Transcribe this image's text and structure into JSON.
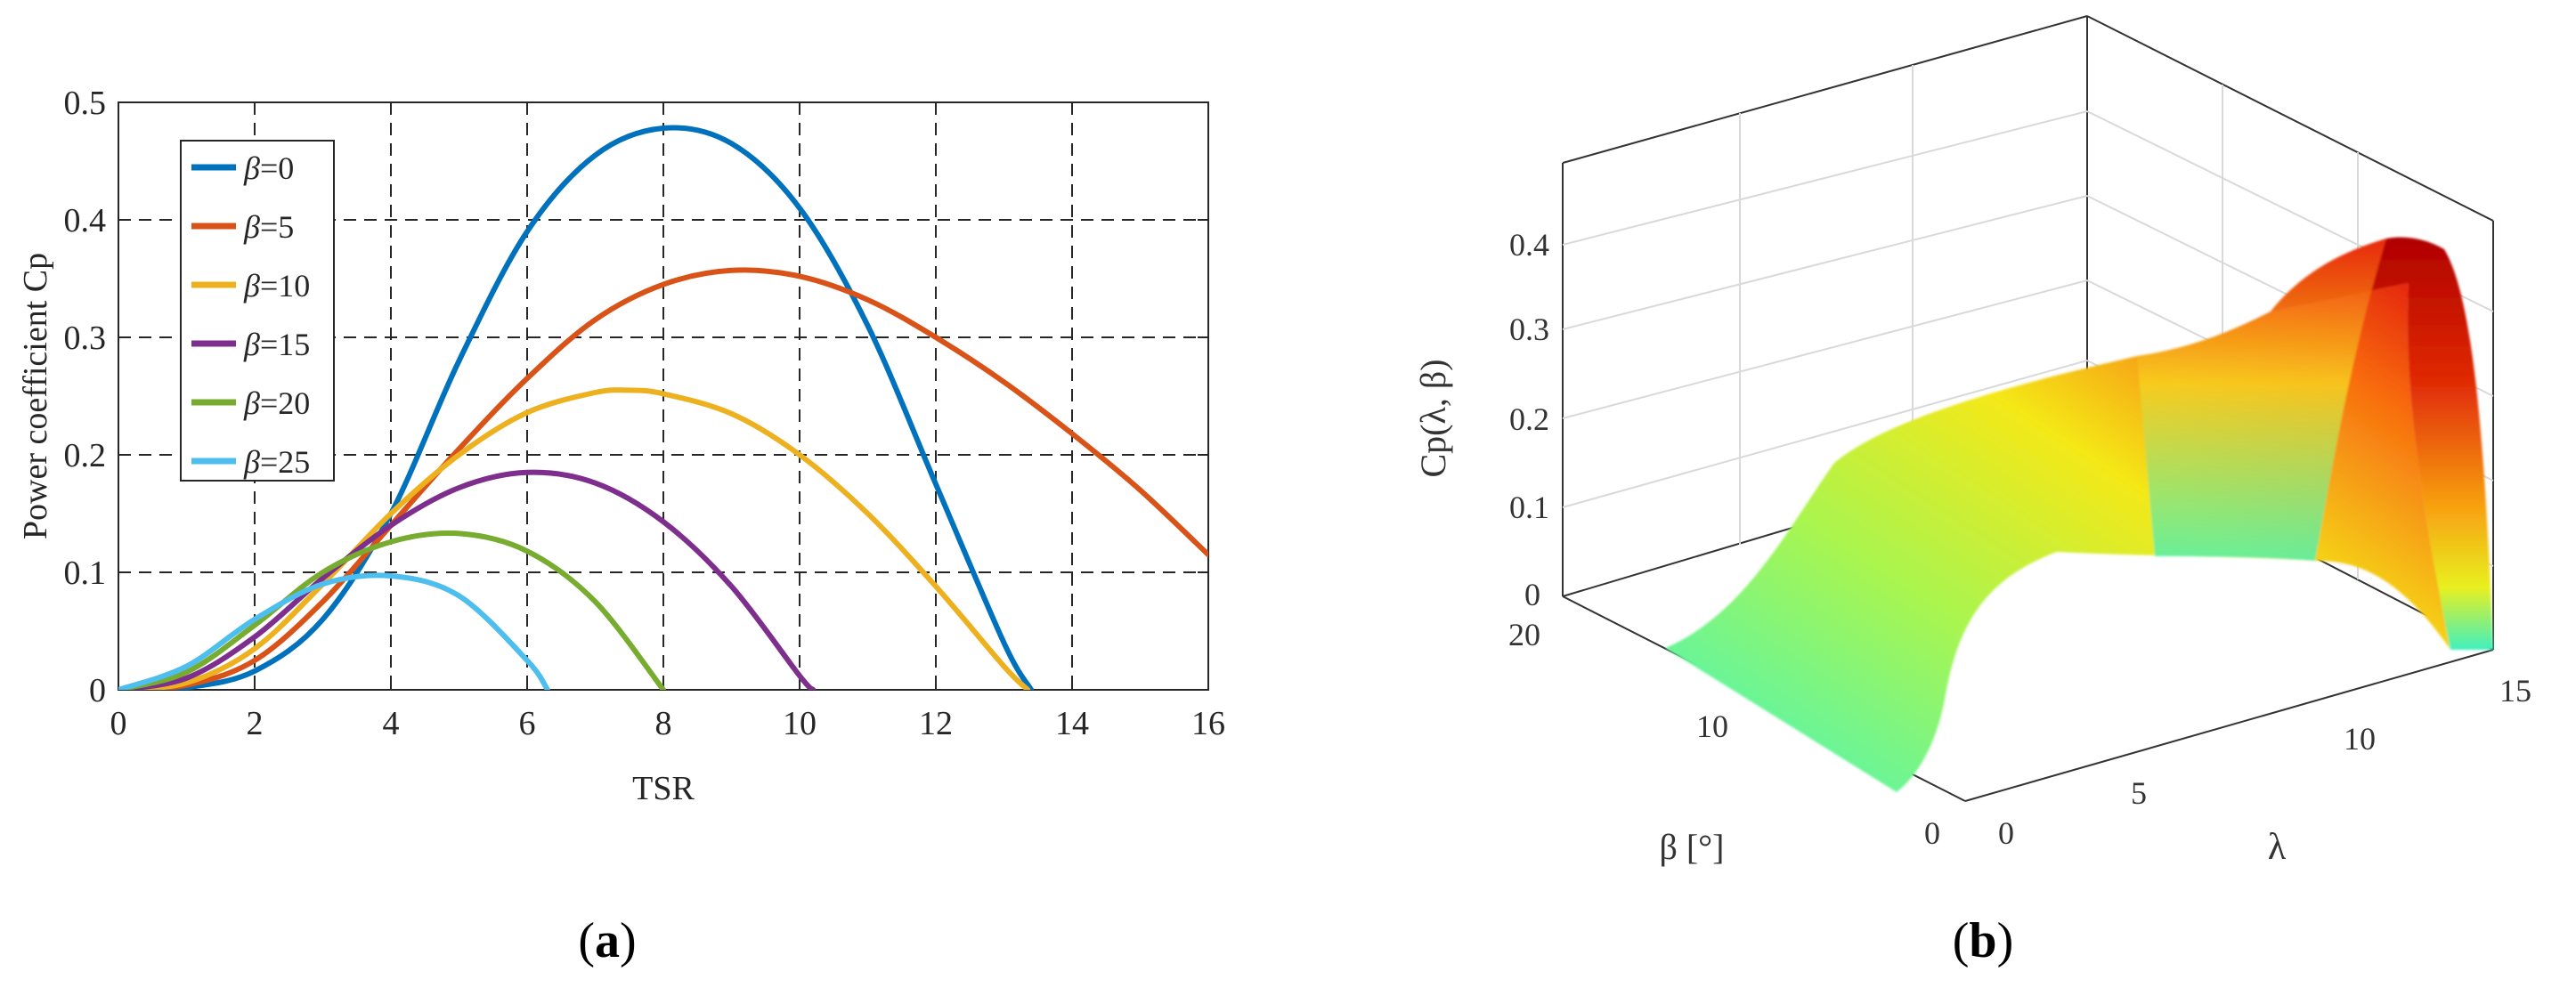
{
  "panels": {
    "a": {
      "caption_open": "(",
      "caption_letter": "a",
      "caption_close": ")"
    },
    "b": {
      "caption_open": "(",
      "caption_letter": "b",
      "caption_close": ")"
    }
  },
  "chart_data": [
    {
      "type": "line",
      "xlabel": "TSR",
      "ylabel": "Power coefficient Cp",
      "xlim": [
        0,
        16
      ],
      "ylim": [
        0,
        0.5
      ],
      "xticks": [
        "0",
        "2",
        "4",
        "6",
        "8",
        "10",
        "12",
        "14",
        "16"
      ],
      "yticks": [
        "0",
        "0.1",
        "0.2",
        "0.3",
        "0.4",
        "0.5"
      ],
      "grid": true,
      "grid_style": "dashed",
      "legend_position": "top-left",
      "legend_symbol": "β",
      "series": [
        {
          "name": "β=0",
          "legend_value": "=0",
          "color": "#0072BD",
          "x": [
            0,
            1,
            2,
            3,
            4,
            5,
            6,
            7,
            8,
            9,
            10,
            11,
            12,
            13,
            13.4
          ],
          "y": [
            0,
            0.002,
            0.016,
            0.06,
            0.15,
            0.28,
            0.39,
            0.455,
            0.478,
            0.465,
            0.41,
            0.31,
            0.175,
            0.04,
            0
          ]
        },
        {
          "name": "β=5",
          "legend_value": "=5",
          "color": "#D95319",
          "x": [
            0,
            1,
            2,
            3,
            4,
            5,
            6,
            7,
            8,
            9,
            10,
            11,
            12,
            13,
            14,
            15,
            16
          ],
          "y": [
            0,
            0.004,
            0.025,
            0.075,
            0.14,
            0.205,
            0.265,
            0.315,
            0.345,
            0.357,
            0.352,
            0.332,
            0.3,
            0.262,
            0.218,
            0.17,
            0.115
          ]
        },
        {
          "name": "β=10",
          "legend_value": "=10",
          "color": "#EDB120",
          "x": [
            0,
            1,
            2,
            3,
            4,
            5,
            6,
            7,
            7.5,
            8,
            9,
            10,
            11,
            12,
            13,
            13.35
          ],
          "y": [
            0,
            0.006,
            0.035,
            0.09,
            0.15,
            0.2,
            0.236,
            0.253,
            0.255,
            0.252,
            0.235,
            0.2,
            0.15,
            0.088,
            0.02,
            0
          ]
        },
        {
          "name": "β=15",
          "legend_value": "=15",
          "color": "#7E2F8E",
          "x": [
            0,
            1,
            2,
            3,
            4,
            5,
            6,
            7,
            8,
            9,
            10,
            10.2
          ],
          "y": [
            0,
            0.01,
            0.045,
            0.095,
            0.14,
            0.172,
            0.185,
            0.176,
            0.143,
            0.088,
            0.012,
            0
          ]
        },
        {
          "name": "β=20",
          "legend_value": "=20",
          "color": "#77AC30",
          "x": [
            0,
            1,
            2,
            3,
            4,
            5,
            6,
            7,
            8
          ],
          "y": [
            0,
            0.015,
            0.055,
            0.1,
            0.126,
            0.133,
            0.118,
            0.075,
            0
          ]
        },
        {
          "name": "β=25",
          "legend_value": "=25",
          "color": "#4DBEEE",
          "x": [
            0,
            1,
            2,
            3,
            4,
            5,
            6,
            6.3
          ],
          "y": [
            0,
            0.02,
            0.06,
            0.09,
            0.097,
            0.08,
            0.025,
            0
          ]
        }
      ]
    },
    {
      "type": "surface",
      "xlabel": "λ",
      "ylabel": "β [°]",
      "zlabel": "Cp(λ, β)",
      "xlim": [
        0,
        15
      ],
      "ylim": [
        0,
        20
      ],
      "zlim": [
        0,
        0.45
      ],
      "xticks": [
        "0",
        "5",
        "10",
        "15"
      ],
      "yticks": [
        "0",
        "10",
        "20"
      ],
      "zticks": [
        "0",
        "0.1",
        "0.2",
        "0.3",
        "0.4"
      ],
      "grid": true,
      "colormap": "jet",
      "peak": {
        "lambda": 8.1,
        "beta": 0,
        "cp": 0.48
      }
    }
  ]
}
